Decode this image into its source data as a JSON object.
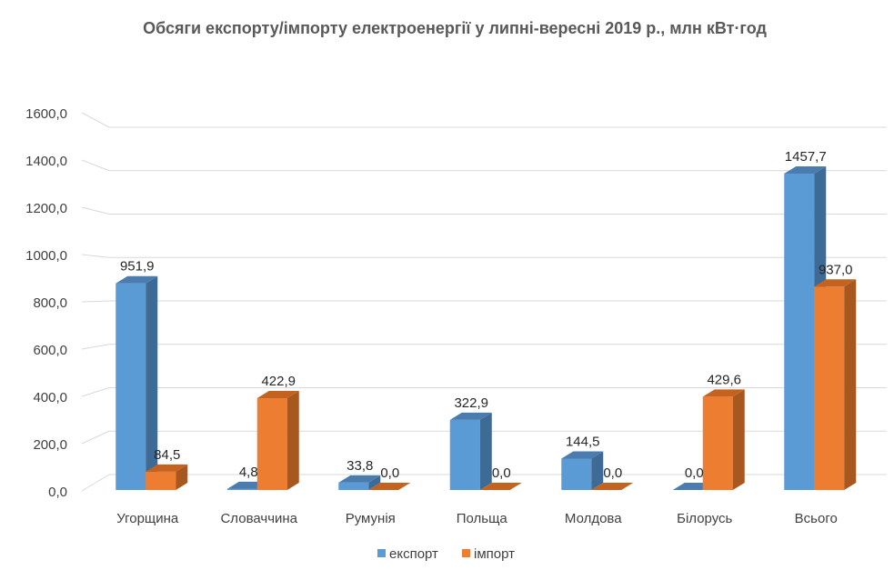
{
  "chart_data": {
    "type": "bar",
    "title": "Обсяги експорту/імпорту електроенергії у липні-вересні 2019 р., млн кВт·год",
    "categories": [
      "Угорщина",
      "Словаччина",
      "Румунія",
      "Польща",
      "Молдова",
      "Білорусь",
      "Всього"
    ],
    "series": [
      {
        "name": "експорт",
        "values": [
          951.9,
          4.8,
          33.8,
          322.9,
          144.5,
          0.0,
          1457.7
        ],
        "labels": [
          "951,9",
          "4,8",
          "33,8",
          "322,9",
          "144,5",
          "0,0",
          "1457,7"
        ],
        "color": "#5B9BD5",
        "side_color": "#3E6A96",
        "top_color": "#4A7CB0"
      },
      {
        "name": "імпорт",
        "values": [
          84.5,
          422.9,
          0.0,
          0.0,
          0.0,
          429.6,
          937.0
        ],
        "labels": [
          "84,5",
          "422,9",
          "0,0",
          "0,0",
          "0,0",
          "429,6",
          "937,0"
        ],
        "color": "#ED7D31",
        "side_color": "#A8571F",
        "top_color": "#C4631F"
      }
    ],
    "ylim": [
      0,
      1600
    ],
    "yticks": [
      "0,0",
      "200,0",
      "400,0",
      "600,0",
      "800,0",
      "1000,0",
      "1200,0",
      "1400,0",
      "1600,0"
    ],
    "grid": true,
    "legend_position": "bottom"
  }
}
